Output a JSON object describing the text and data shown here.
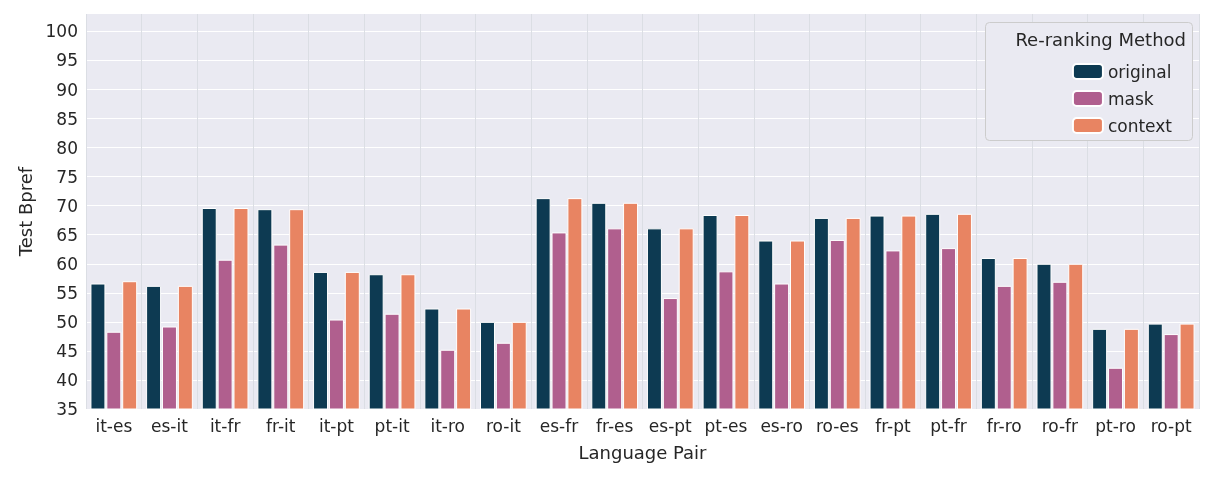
{
  "chart_data": {
    "type": "bar",
    "xlabel": "Language Pair",
    "ylabel": "Test Bpref",
    "legend_title": "Re-ranking Method",
    "legend": "top right",
    "grid": true,
    "categories": [
      "it-es",
      "es-it",
      "it-fr",
      "fr-it",
      "it-pt",
      "pt-it",
      "it-ro",
      "ro-it",
      "es-fr",
      "fr-es",
      "es-pt",
      "pt-es",
      "es-ro",
      "ro-es",
      "fr-pt",
      "pt-fr",
      "fr-ro",
      "ro-fr",
      "pt-ro",
      "ro-pt"
    ],
    "ylim": [
      35,
      103
    ],
    "yticks": [
      35,
      40,
      45,
      50,
      55,
      60,
      65,
      70,
      75,
      80,
      85,
      90,
      95,
      100
    ],
    "series": [
      {
        "name": "original",
        "color": "#0d3a52",
        "values": [
          56.6,
          56.2,
          69.6,
          69.4,
          58.6,
          58.2,
          52.3,
          50.0,
          71.3,
          70.5,
          66.1,
          68.4,
          64.0,
          67.9,
          68.3,
          68.6,
          61.0,
          60.0,
          48.8,
          49.7
        ]
      },
      {
        "name": "mask",
        "color": "#b05f8e",
        "values": [
          48.3,
          49.2,
          60.7,
          63.3,
          50.4,
          51.4,
          45.2,
          46.4,
          65.4,
          66.1,
          54.1,
          58.7,
          56.6,
          64.1,
          62.3,
          62.7,
          56.2,
          56.9,
          42.1,
          47.9
        ]
      },
      {
        "name": "context",
        "color": "#e88462",
        "values": [
          57.0,
          56.2,
          69.6,
          69.4,
          58.6,
          58.2,
          52.3,
          50.0,
          71.3,
          70.5,
          66.1,
          68.4,
          64.0,
          67.9,
          68.3,
          68.6,
          61.0,
          60.0,
          48.8,
          49.7
        ]
      }
    ]
  }
}
